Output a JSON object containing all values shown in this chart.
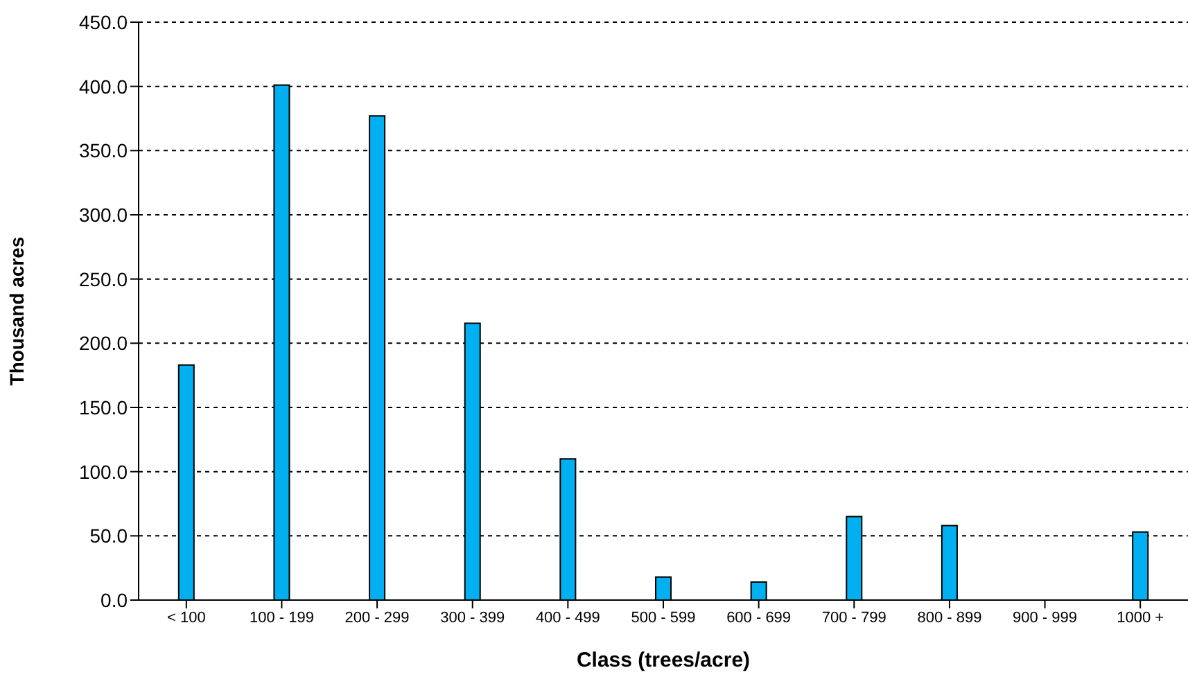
{
  "chart_data": {
    "type": "bar",
    "xlabel": "Class (trees/acre)",
    "ylabel": "Thousand acres",
    "categories": [
      "< 100",
      "100 - 199",
      "200 - 299",
      "300 - 399",
      "400 - 499",
      "500 - 599",
      "600 - 699",
      "700 - 799",
      "800 - 899",
      "900 - 999",
      "1000 +"
    ],
    "values": [
      183,
      401,
      377,
      215.5,
      110,
      18,
      14,
      65,
      58,
      0,
      53
    ],
    "color": "#00b0f0",
    "ylim": [
      0,
      450
    ],
    "yticks": [
      {
        "value": 0,
        "label": "0.0"
      },
      {
        "value": 50,
        "label": "50.0"
      },
      {
        "value": 100,
        "label": "100.0"
      },
      {
        "value": 150,
        "label": "150.0"
      },
      {
        "value": 200,
        "label": "200.0"
      },
      {
        "value": 250,
        "label": "250.0"
      },
      {
        "value": 300,
        "label": "300.0"
      },
      {
        "value": 350,
        "label": "350.0"
      },
      {
        "value": 400,
        "label": "400.0"
      },
      {
        "value": 450,
        "label": "450.0"
      }
    ],
    "grid": "y",
    "legend": false
  }
}
